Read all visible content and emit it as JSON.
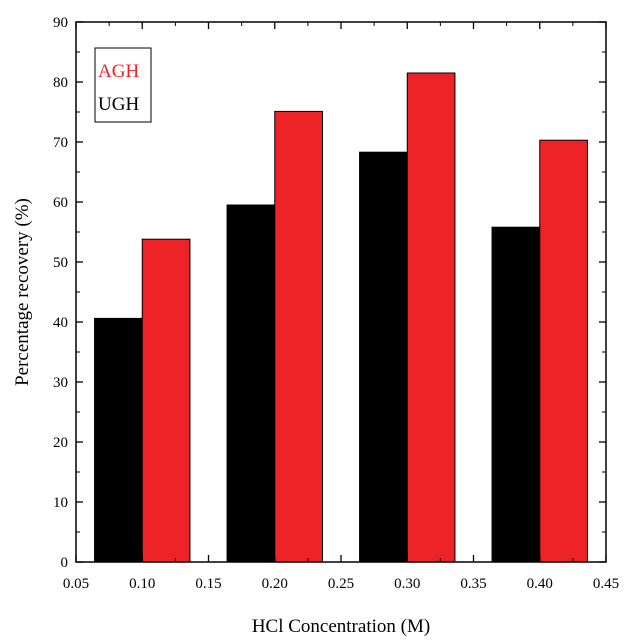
{
  "chart_data": {
    "type": "bar",
    "title": "",
    "xlabel": "HCl Concentration (M)",
    "ylabel": "Percentage recovery (%)",
    "x": [
      0.1,
      0.2,
      0.3,
      0.4
    ],
    "xlim": [
      0.05,
      0.45
    ],
    "ylim": [
      0,
      90
    ],
    "x_ticks": [
      "0.05",
      "0.10",
      "0.15",
      "0.20",
      "0.25",
      "0.30",
      "0.35",
      "0.40",
      "0.45"
    ],
    "y_ticks": [
      "0",
      "10",
      "20",
      "30",
      "40",
      "50",
      "60",
      "70",
      "80",
      "90"
    ],
    "grid": false,
    "legend_position": "top-left",
    "series": [
      {
        "name": "UGH",
        "color": "#000000",
        "values": [
          40.6,
          59.5,
          68.3,
          55.8
        ]
      },
      {
        "name": "AGH",
        "color": "#ee2328",
        "values": [
          53.8,
          75.1,
          81.5,
          70.3
        ]
      }
    ]
  }
}
